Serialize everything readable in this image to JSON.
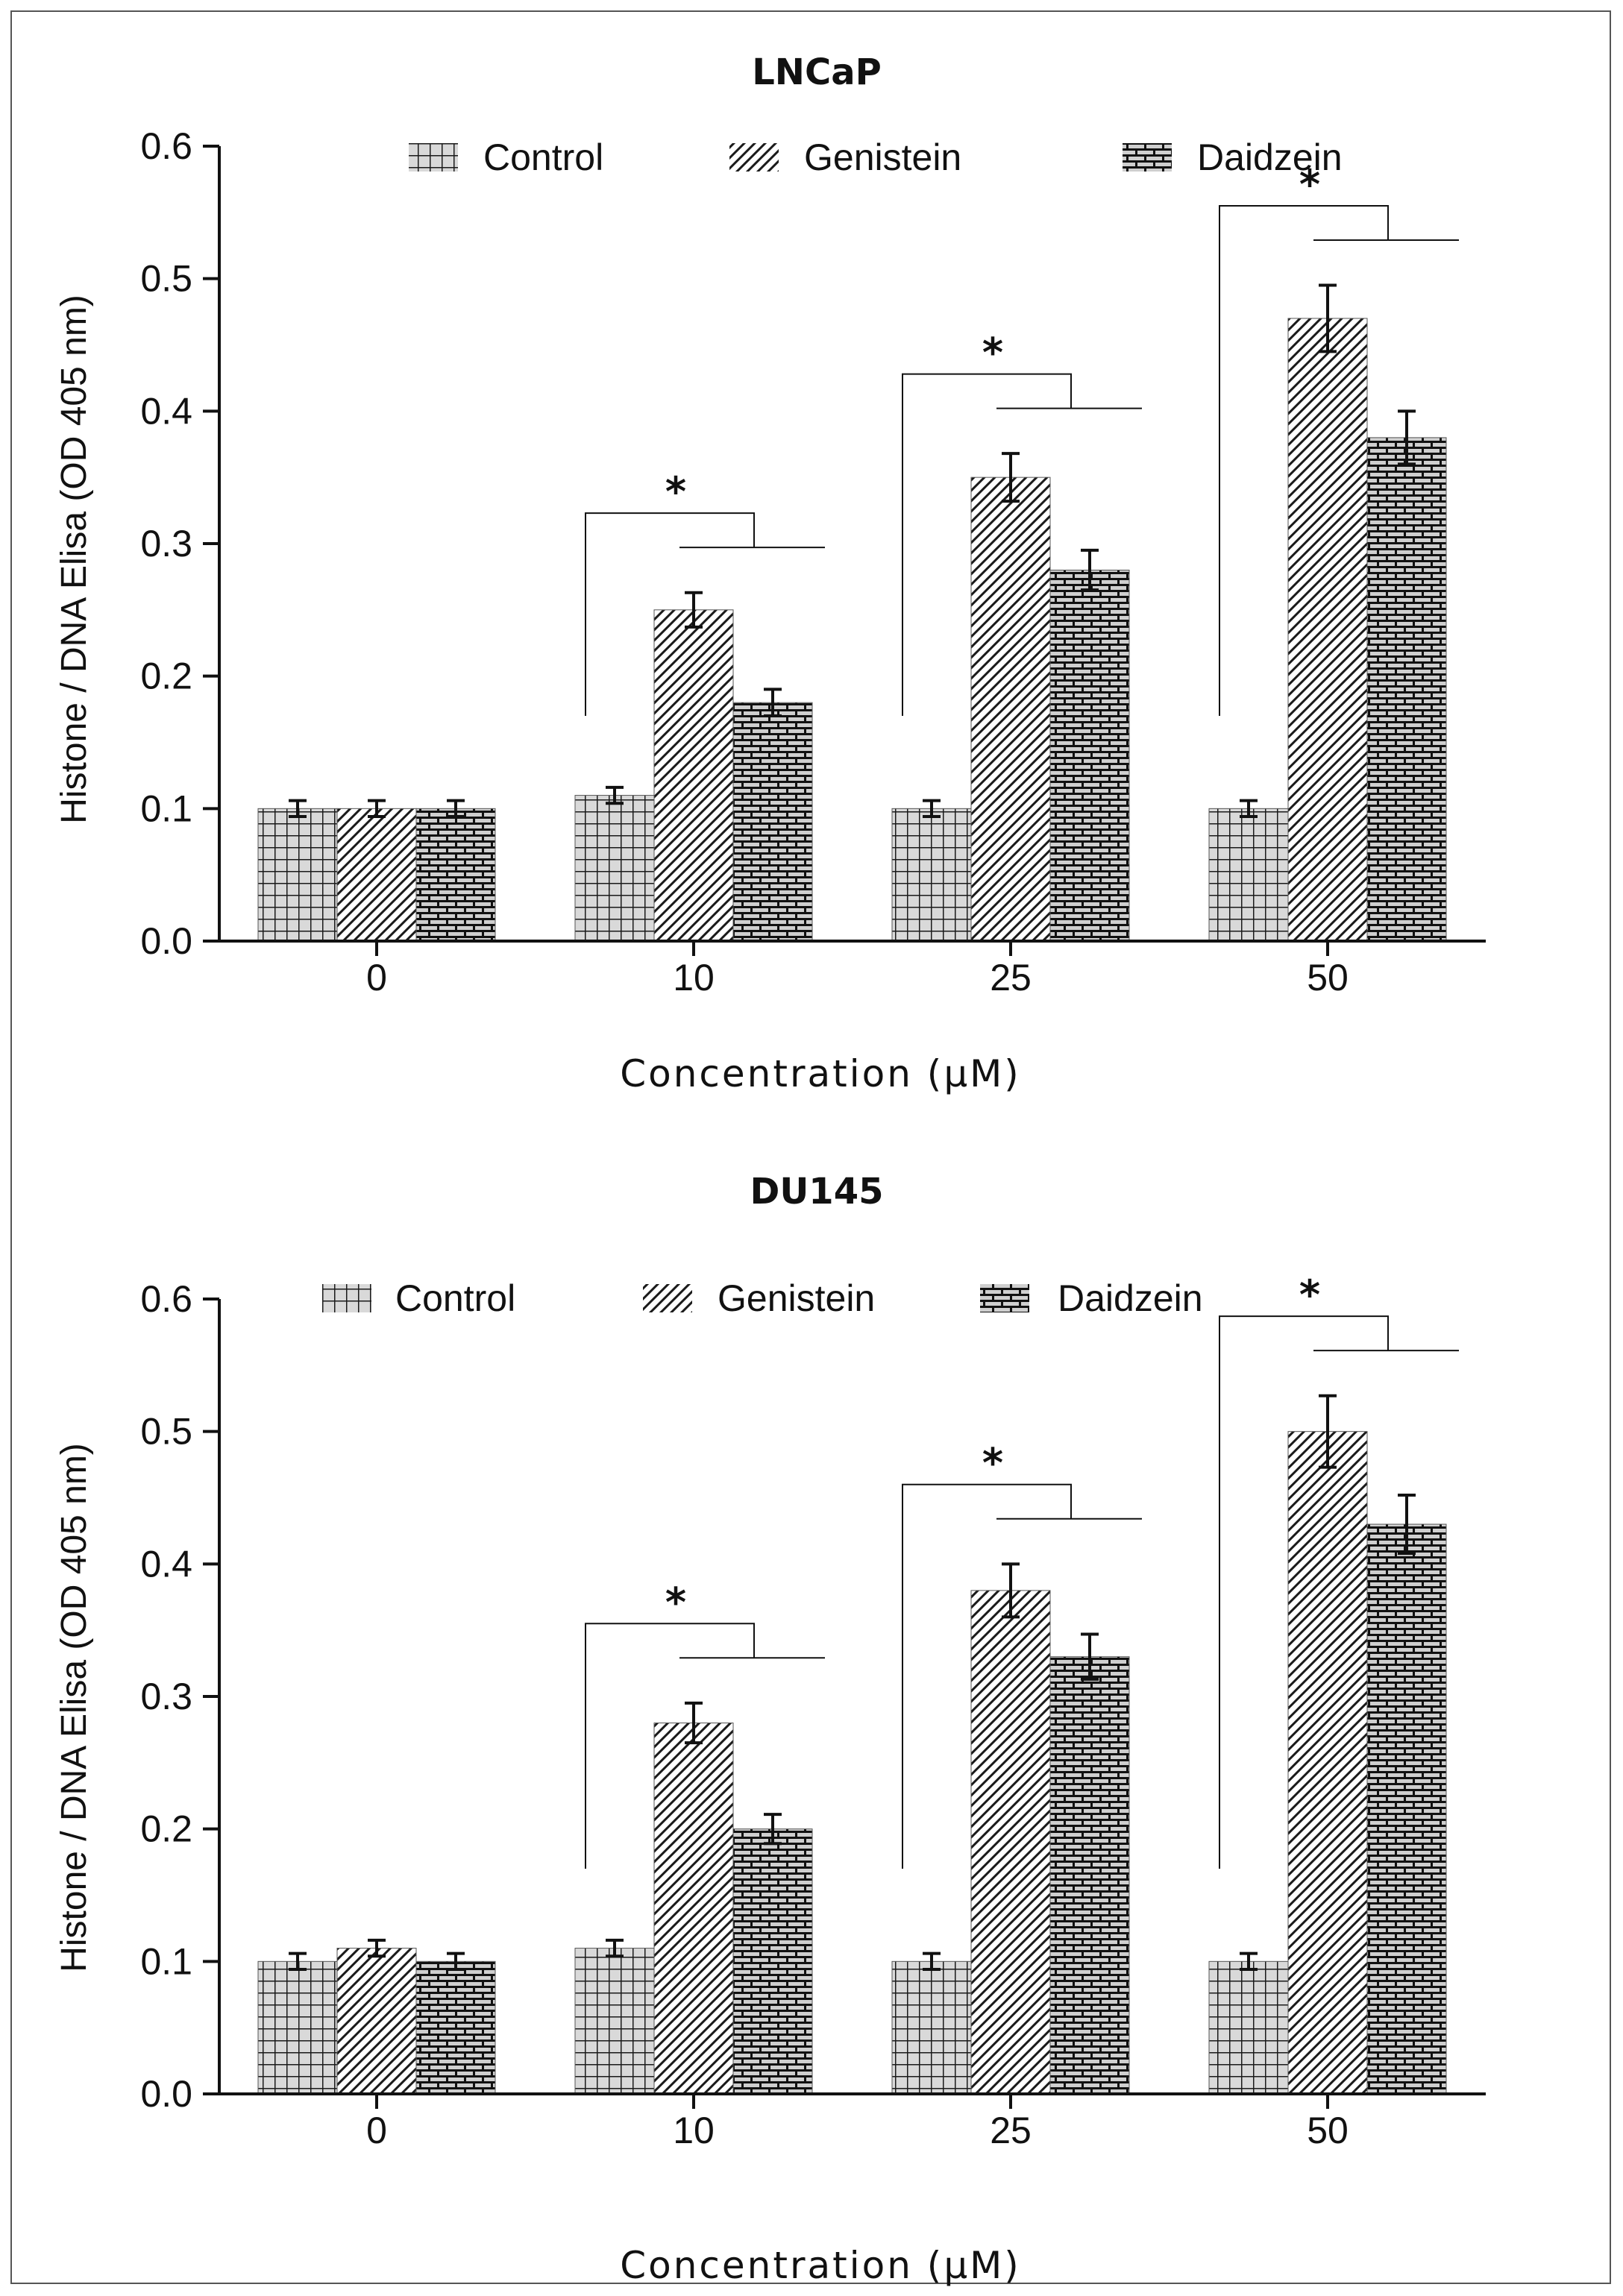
{
  "figure": {
    "background": "#ffffff",
    "bar_fill": "#d9d9d9",
    "ink": "#111111"
  },
  "legend": {
    "control": "Control",
    "genistein": "Genistein",
    "daidzein": "Daidzein"
  },
  "chart_data": [
    {
      "type": "bar",
      "title": "LNCaP",
      "xlabel": "Concentration (μM)",
      "ylabel": "Histone / DNA Elisa (OD 405 nm)",
      "ylim": [
        0,
        0.6
      ],
      "yticks": [
        "0.0",
        "0.1",
        "0.2",
        "0.3",
        "0.4",
        "0.5",
        "0.6"
      ],
      "categories": [
        "0",
        "10",
        "25",
        "50"
      ],
      "series": [
        {
          "name": "Control",
          "values": [
            0.1,
            0.11,
            0.1,
            0.1
          ],
          "errors": [
            0.006,
            0.006,
            0.006,
            0.006
          ]
        },
        {
          "name": "Genistein",
          "values": [
            0.1,
            0.25,
            0.35,
            0.47
          ],
          "errors": [
            0.006,
            0.013,
            0.018,
            0.025
          ]
        },
        {
          "name": "Daidzein",
          "values": [
            0.1,
            0.18,
            0.28,
            0.38
          ],
          "errors": [
            0.006,
            0.01,
            0.015,
            0.02
          ]
        }
      ],
      "significance": [
        {
          "category": "10",
          "label": "*"
        },
        {
          "category": "25",
          "label": "*"
        },
        {
          "category": "50",
          "label": "*"
        }
      ],
      "legend_position": "top"
    },
    {
      "type": "bar",
      "title": "DU145",
      "xlabel": "Concentration (μM)",
      "ylabel": "Histone / DNA Elisa (OD 405 nm)",
      "ylim": [
        0,
        0.6
      ],
      "yticks": [
        "0.0",
        "0.1",
        "0.2",
        "0.3",
        "0.4",
        "0.5",
        "0.6"
      ],
      "categories": [
        "0",
        "10",
        "25",
        "50"
      ],
      "series": [
        {
          "name": "Control",
          "values": [
            0.1,
            0.11,
            0.1,
            0.1
          ],
          "errors": [
            0.006,
            0.006,
            0.006,
            0.006
          ]
        },
        {
          "name": "Genistein",
          "values": [
            0.11,
            0.28,
            0.38,
            0.5
          ],
          "errors": [
            0.006,
            0.015,
            0.02,
            0.027
          ]
        },
        {
          "name": "Daidzein",
          "values": [
            0.1,
            0.2,
            0.33,
            0.43
          ],
          "errors": [
            0.006,
            0.011,
            0.017,
            0.022
          ]
        }
      ],
      "significance": [
        {
          "category": "10",
          "label": "*"
        },
        {
          "category": "25",
          "label": "*"
        },
        {
          "category": "50",
          "label": "*"
        }
      ],
      "legend_position": "top"
    }
  ]
}
